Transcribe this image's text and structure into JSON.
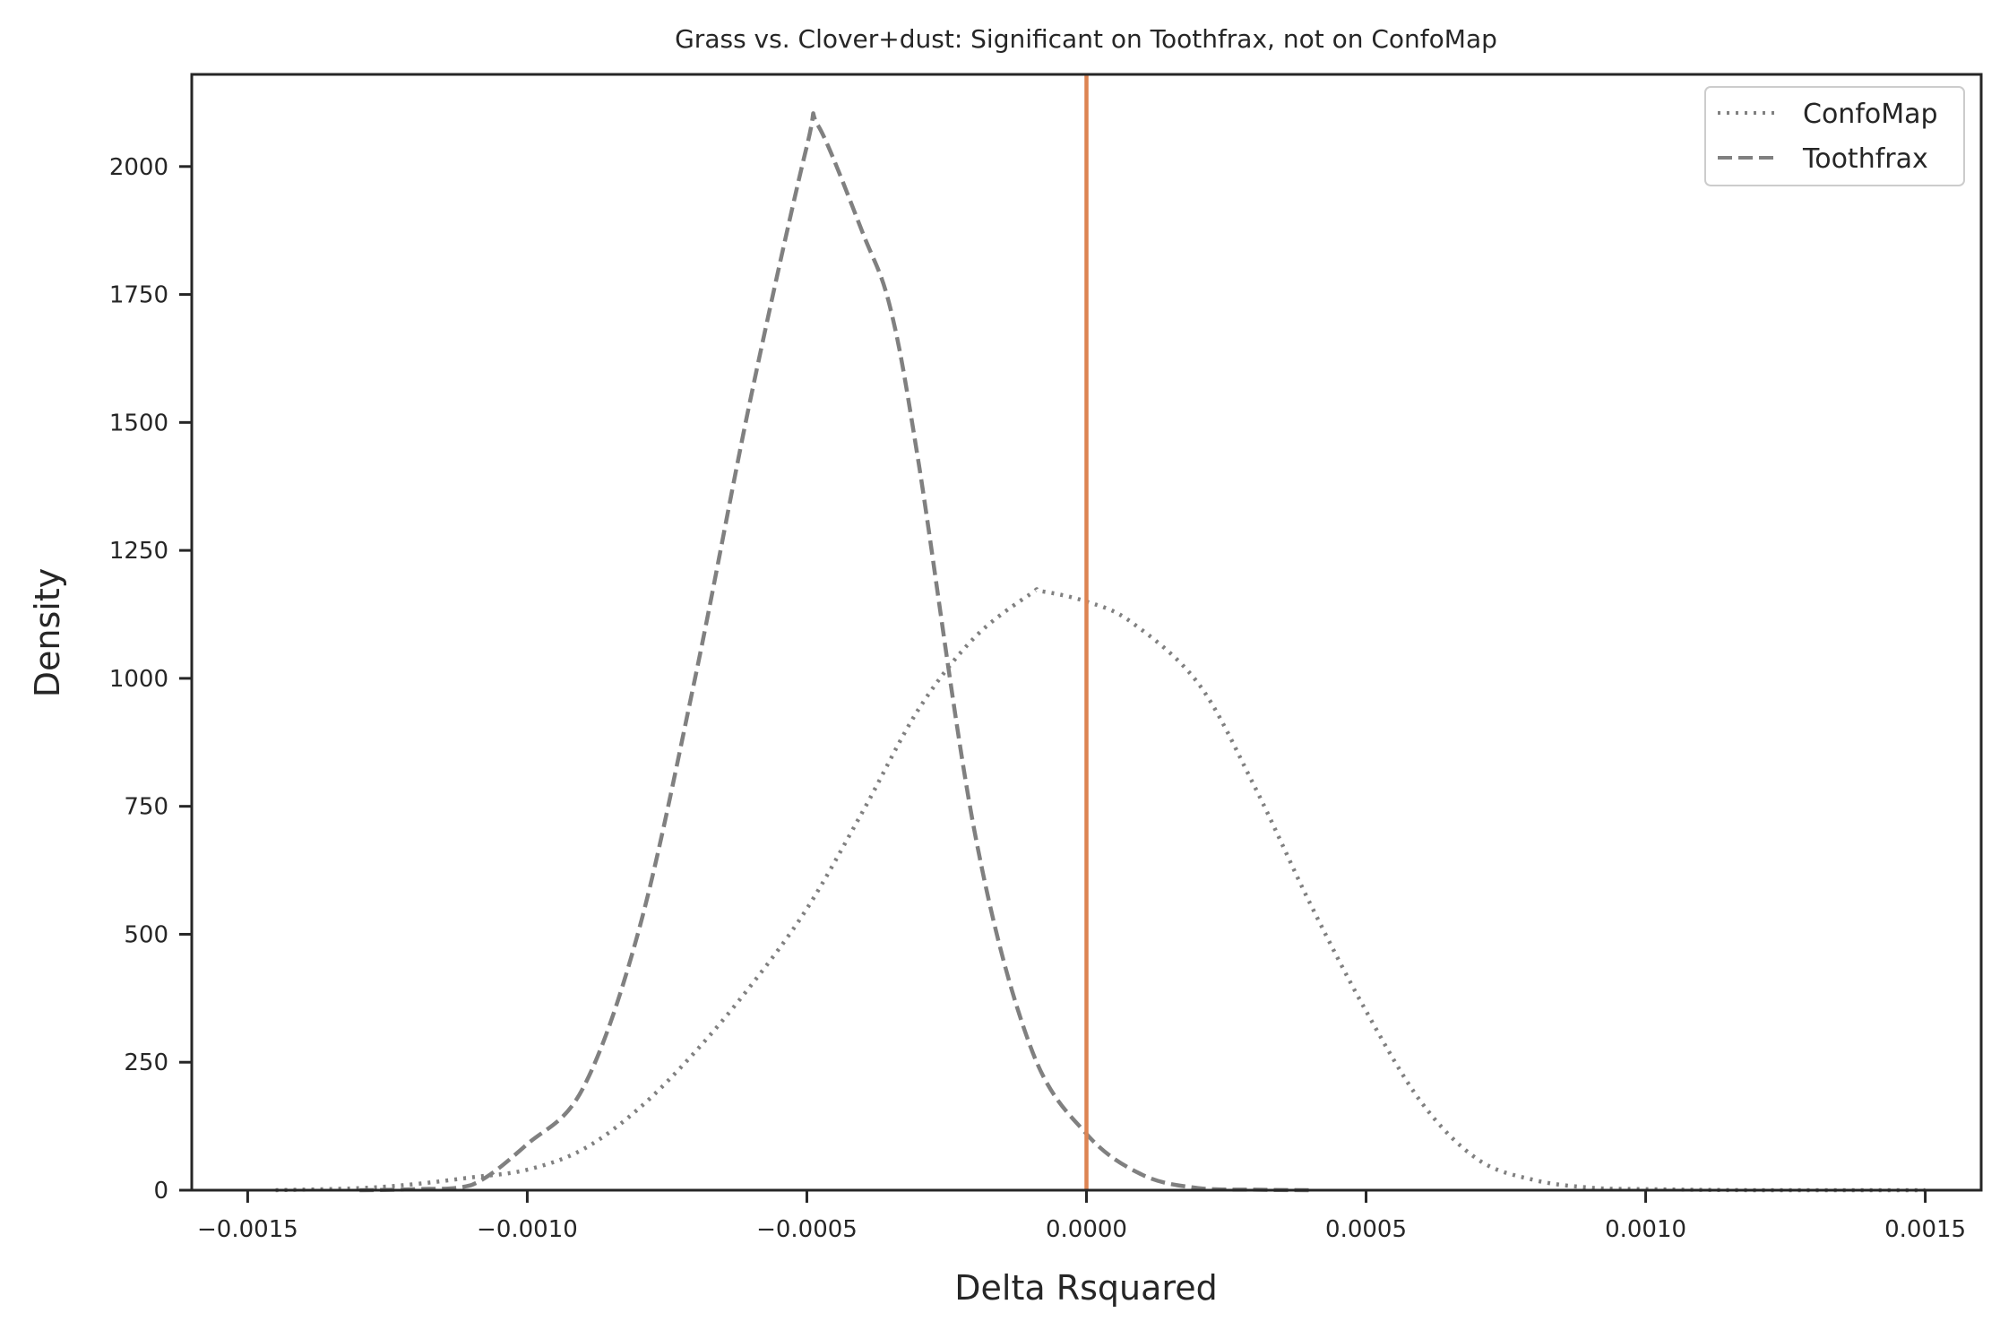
{
  "chart_data": {
    "type": "line",
    "title": "Grass vs. Clover+dust: Significant on Toothfrax, not on ConfoMap",
    "xlabel": "Delta Rsquared",
    "ylabel": "Density",
    "xlim": [
      -0.0016,
      0.0016
    ],
    "ylim": [
      0,
      2180
    ],
    "x_ticks": [
      -0.0015,
      -0.001,
      -0.0005,
      0.0,
      0.0005,
      0.001,
      0.0015
    ],
    "x_tick_labels": [
      "−0.0015",
      "−0.0010",
      "−0.0005",
      "0.0000",
      "0.0005",
      "0.0010",
      "0.0015"
    ],
    "y_ticks": [
      0,
      250,
      500,
      750,
      1000,
      1250,
      1500,
      1750,
      2000
    ],
    "y_tick_labels": [
      "0",
      "250",
      "500",
      "750",
      "1000",
      "1250",
      "1500",
      "1750",
      "2000"
    ],
    "grid": false,
    "legend_position": "top-right",
    "vline": {
      "x": 0.0,
      "color": "#dd8452"
    },
    "series": [
      {
        "name": "ConfoMap",
        "style": "dotted",
        "color": "#808080",
        "points": [
          [
            -0.00145,
            0
          ],
          [
            -0.0013,
            4
          ],
          [
            -0.0012,
            12
          ],
          [
            -0.0011,
            25
          ],
          [
            -0.001,
            40
          ],
          [
            -0.0009,
            80
          ],
          [
            -0.0008,
            160
          ],
          [
            -0.0007,
            270
          ],
          [
            -0.0006,
            400
          ],
          [
            -0.0005,
            550
          ],
          [
            -0.0004,
            740
          ],
          [
            -0.0003,
            940
          ],
          [
            -0.0002,
            1080
          ],
          [
            -0.0001,
            1165
          ],
          [
            -8e-05,
            1170
          ],
          [
            0.0,
            1150
          ],
          [
            8e-05,
            1110
          ],
          [
            0.0002,
            990
          ],
          [
            0.0003,
            790
          ],
          [
            0.0004,
            560
          ],
          [
            0.0005,
            350
          ],
          [
            0.0006,
            170
          ],
          [
            0.0007,
            60
          ],
          [
            0.0008,
            20
          ],
          [
            0.0009,
            5
          ],
          [
            0.001,
            2
          ],
          [
            0.0012,
            0
          ],
          [
            0.0015,
            0
          ]
        ]
      },
      {
        "name": "Toothfrax",
        "style": "dashed",
        "color": "#808080",
        "points": [
          [
            -0.0013,
            0
          ],
          [
            -0.0012,
            2
          ],
          [
            -0.0011,
            10
          ],
          [
            -0.001,
            90
          ],
          [
            -0.0009,
            200
          ],
          [
            -0.0008,
            510
          ],
          [
            -0.0007,
            1000
          ],
          [
            -0.0006,
            1550
          ],
          [
            -0.0005,
            2040
          ],
          [
            -0.00048,
            2080
          ],
          [
            -0.0004,
            1870
          ],
          [
            -0.00035,
            1720
          ],
          [
            -0.0003,
            1420
          ],
          [
            -0.0002,
            700
          ],
          [
            -0.0001,
            280
          ],
          [
            0.0,
            110
          ],
          [
            0.0001,
            30
          ],
          [
            0.0002,
            4
          ],
          [
            0.0003,
            1
          ],
          [
            0.0004,
            0
          ]
        ]
      }
    ]
  }
}
